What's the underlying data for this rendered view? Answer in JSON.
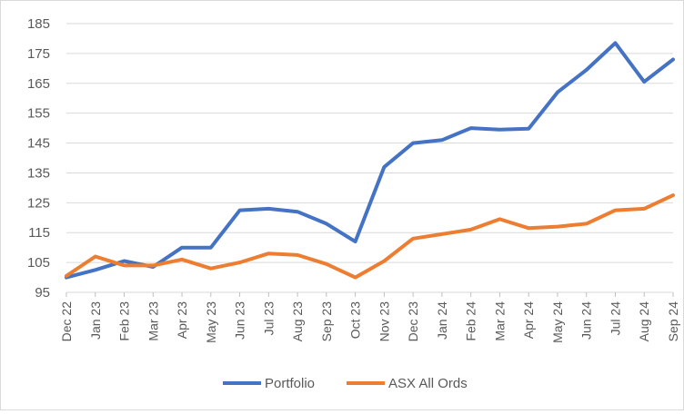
{
  "chart_data": {
    "type": "line",
    "title": "",
    "xlabel": "",
    "ylabel": "",
    "ylim": [
      95,
      185
    ],
    "yticks": [
      95,
      105,
      115,
      125,
      135,
      145,
      155,
      165,
      175,
      185
    ],
    "grid": "horizontal",
    "legend_position": "bottom",
    "categories": [
      "Dec 22",
      "Jan 23",
      "Feb 23",
      "Mar 23",
      "Apr 23",
      "May 23",
      "Jun 23",
      "Jul 23",
      "Aug 23",
      "Sep 23",
      "Oct 23",
      "Nov 23",
      "Dec 23",
      "Jan 24",
      "Feb 24",
      "Mar 24",
      "Apr 24",
      "May 24",
      "Jun 24",
      "Jul 24",
      "Aug 24",
      "Sep 24"
    ],
    "series": [
      {
        "name": "Portfolio",
        "color": "#4472C4",
        "values": [
          100,
          102.5,
          105.5,
          103.5,
          110,
          110,
          122.5,
          123,
          122,
          118,
          112,
          137,
          145,
          146,
          150,
          149.5,
          149.8,
          162,
          169.5,
          178.5,
          165.5,
          173
        ]
      },
      {
        "name": "ASX All Ords",
        "color": "#ED7D31",
        "values": [
          100.5,
          107,
          104,
          104,
          106,
          103,
          105,
          108,
          107.5,
          104.5,
          100,
          105.5,
          113,
          114.5,
          116,
          119.5,
          116.5,
          117,
          118,
          122.5,
          123,
          127.5
        ]
      }
    ]
  }
}
